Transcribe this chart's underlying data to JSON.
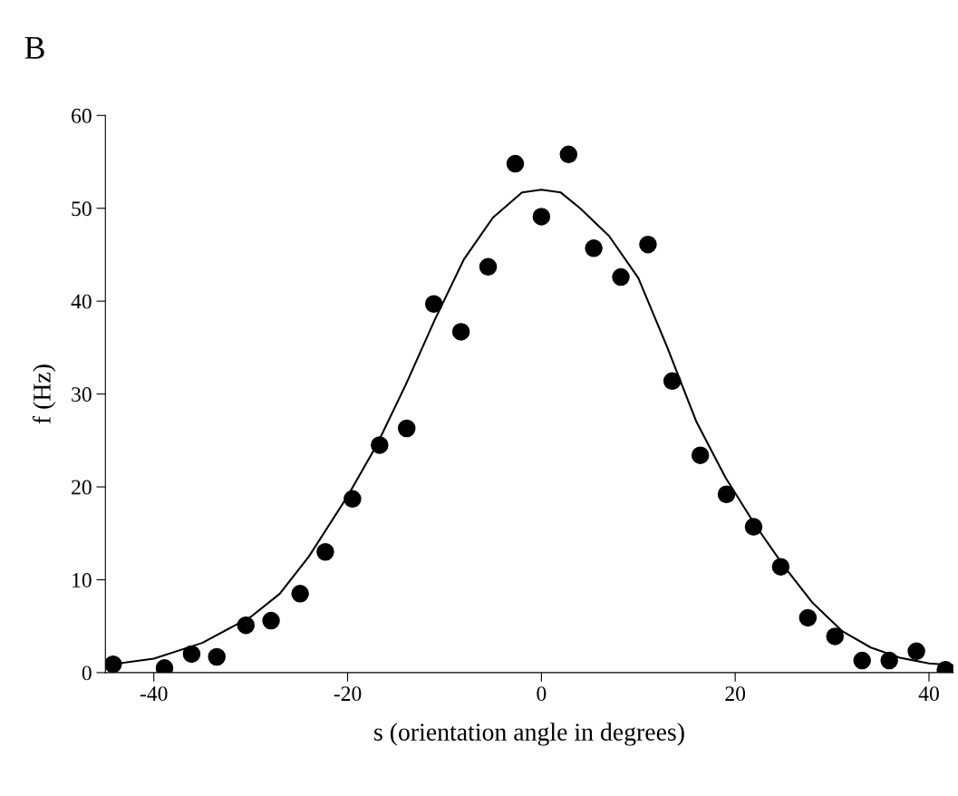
{
  "chart_data": {
    "type": "scatter",
    "xlabel": "s (orientation angle in degrees)",
    "ylabel": "f (Hz)",
    "annotations": [
      "B"
    ],
    "xlim": [
      -45,
      42.5
    ],
    "ylim": [
      0,
      60
    ],
    "xticks": [
      -40,
      -20,
      0,
      20,
      40
    ],
    "yticks": [
      0,
      10,
      20,
      30,
      40,
      50,
      60
    ],
    "grid": false,
    "series": [
      {
        "color": "#000000",
        "marker": "circle",
        "x": [
          -44.2,
          -38.9,
          -36.1,
          -33.5,
          -30.5,
          -27.9,
          -24.9,
          -22.3,
          -19.5,
          -16.7,
          -13.9,
          -11.1,
          -8.3,
          -5.5,
          -2.7,
          0,
          2.8,
          5.4,
          8.2,
          11.0,
          13.5,
          16.4,
          19.1,
          21.9,
          24.7,
          27.5,
          30.3,
          33.1,
          35.9,
          38.7,
          41.7
        ],
        "values": [
          0.9,
          0.5,
          2.0,
          1.7,
          5.1,
          5.6,
          8.5,
          13.0,
          18.7,
          24.5,
          26.3,
          39.7,
          36.7,
          43.7,
          54.8,
          49.1,
          55.8,
          45.7,
          42.6,
          46.1,
          31.4,
          23.4,
          19.2,
          15.7,
          11.4,
          5.9,
          3.9,
          1.3,
          1.3,
          2.3,
          0.3
        ]
      },
      {
        "type": "line",
        "color": "#000000",
        "marker": "none",
        "line_style": "solid",
        "x": [
          -45,
          -40,
          -35,
          -30,
          -27,
          -24,
          -20,
          -17,
          -14,
          -11,
          -8,
          -5,
          -2,
          0,
          2,
          4,
          7,
          10,
          13,
          16,
          19,
          22,
          25,
          28,
          31,
          34,
          37,
          40,
          42.5
        ],
        "values": [
          0.8,
          1.5,
          3.2,
          6,
          8.5,
          12.5,
          19,
          24.5,
          31,
          38,
          44.5,
          49,
          51.7,
          52,
          51.7,
          50,
          47,
          42.5,
          35,
          27,
          21,
          16,
          11.5,
          7.5,
          4.5,
          2.7,
          1.6,
          1.0,
          0.8
        ]
      }
    ]
  }
}
